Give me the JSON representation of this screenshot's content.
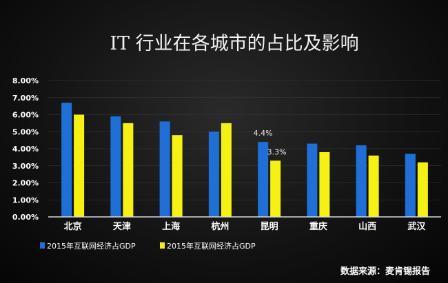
{
  "chart_data": {
    "type": "bar",
    "title": "IT 行业在各城市的占比及影响",
    "categories": [
      "北京",
      "天津",
      "上海",
      "杭州",
      "昆明",
      "重庆",
      "山西",
      "武汉"
    ],
    "series": [
      {
        "name": "2015年互联网经济占GDP",
        "color": "#1f6fd6",
        "values": [
          6.7,
          5.9,
          5.6,
          5.0,
          4.4,
          4.3,
          4.2,
          3.7
        ]
      },
      {
        "name": "2015年互联网经济占GDP",
        "color": "#f5f213",
        "values": [
          6.0,
          5.5,
          4.8,
          5.5,
          3.3,
          3.8,
          3.6,
          3.2
        ]
      }
    ],
    "ylim": [
      0,
      8
    ],
    "yticks": [
      "0.00%",
      "1.00%",
      "2.00%",
      "3.00%",
      "4.00%",
      "5.00%",
      "6.00%",
      "7.00%",
      "8.00%"
    ],
    "annotations": [
      {
        "category": "昆明",
        "series": 0,
        "text": "4.4%"
      },
      {
        "category": "昆明",
        "series": 1,
        "text": "3.3%"
      }
    ],
    "legend_position": "bottom-left",
    "source": "数据来源：麦肯锡报告"
  }
}
